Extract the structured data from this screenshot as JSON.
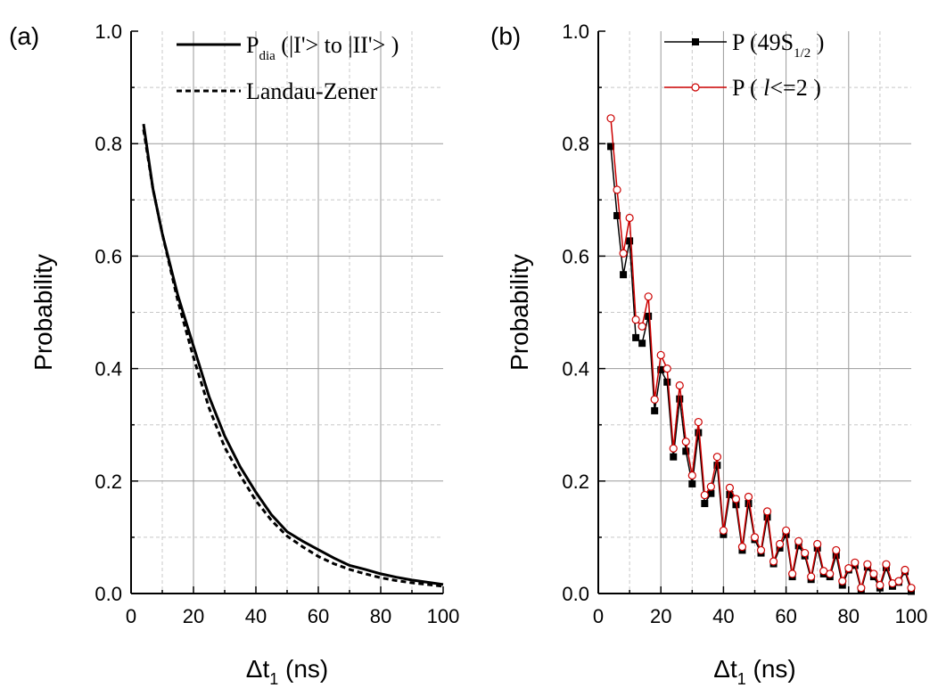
{
  "chart_data": [
    {
      "panel_label": "(a)",
      "type": "line",
      "xlabel": {
        "main": "Δt",
        "sub": "1",
        "unit": " (ns)"
      },
      "ylabel": "Probability",
      "xlim": [
        0,
        100
      ],
      "ylim": [
        0.0,
        1.0
      ],
      "x_ticks": [
        "0",
        "20",
        "40",
        "60",
        "80",
        "100"
      ],
      "y_ticks": [
        "0.0",
        "0.2",
        "0.4",
        "0.6",
        "0.8",
        "1.0"
      ],
      "grid": true,
      "legend_position": "top-right",
      "series": [
        {
          "key": "pdia",
          "legend": {
            "pre": "P",
            "sub": "dia",
            "post": " (|I'> to |II'> )"
          },
          "color": "#000000",
          "style": "solid",
          "x": [
            4,
            7,
            10,
            15,
            20,
            25,
            30,
            35,
            40,
            45,
            50,
            55,
            60,
            65,
            70,
            75,
            80,
            85,
            90,
            95,
            100
          ],
          "y": [
            0.835,
            0.72,
            0.64,
            0.53,
            0.44,
            0.35,
            0.28,
            0.225,
            0.18,
            0.14,
            0.11,
            0.093,
            0.078,
            0.063,
            0.05,
            0.043,
            0.035,
            0.029,
            0.024,
            0.02,
            0.016
          ]
        },
        {
          "key": "lz",
          "legend": {
            "pre": "Landau-Zener",
            "sub": "",
            "post": ""
          },
          "color": "#000000",
          "style": "dashed",
          "x": [
            4,
            7,
            10,
            15,
            20,
            25,
            30,
            35,
            40,
            45,
            50,
            55,
            60,
            65,
            70,
            75,
            80,
            85,
            90,
            95,
            100
          ],
          "y": [
            0.825,
            0.72,
            0.64,
            0.52,
            0.42,
            0.33,
            0.26,
            0.21,
            0.165,
            0.13,
            0.102,
            0.083,
            0.066,
            0.053,
            0.043,
            0.035,
            0.028,
            0.023,
            0.019,
            0.016,
            0.013
          ]
        }
      ]
    },
    {
      "panel_label": "(b)",
      "type": "line",
      "xlabel": {
        "main": "Δt",
        "sub": "1",
        "unit": " (ns)"
      },
      "ylabel": "Probability",
      "xlim": [
        0,
        100
      ],
      "ylim": [
        0.0,
        1.0
      ],
      "x_ticks": [
        "0",
        "20",
        "40",
        "60",
        "80",
        "100"
      ],
      "y_ticks": [
        "0.0",
        "0.2",
        "0.4",
        "0.6",
        "0.8",
        "1.0"
      ],
      "grid": true,
      "legend_position": "top-right",
      "series": [
        {
          "key": "p49s",
          "legend": {
            "pre": "P (49S",
            "sub": "1/2",
            "post": " )"
          },
          "color": "#000000",
          "marker": "filled-square",
          "x": [
            4,
            6,
            8,
            10,
            12,
            14,
            16,
            18,
            20,
            22,
            24,
            26,
            28,
            30,
            32,
            34,
            36,
            38,
            40,
            42,
            44,
            46,
            48,
            50,
            52,
            54,
            56,
            58,
            60,
            62,
            64,
            66,
            68,
            70,
            72,
            74,
            76,
            78,
            80,
            82,
            84,
            86,
            88,
            90,
            92,
            94,
            96,
            98,
            100
          ],
          "y": [
            0.795,
            0.672,
            0.567,
            0.627,
            0.455,
            0.445,
            0.493,
            0.325,
            0.398,
            0.376,
            0.243,
            0.346,
            0.253,
            0.195,
            0.286,
            0.16,
            0.178,
            0.228,
            0.105,
            0.176,
            0.158,
            0.077,
            0.16,
            0.096,
            0.072,
            0.136,
            0.053,
            0.081,
            0.105,
            0.03,
            0.085,
            0.067,
            0.025,
            0.081,
            0.035,
            0.03,
            0.068,
            0.015,
            0.042,
            0.05,
            0.006,
            0.047,
            0.03,
            0.01,
            0.046,
            0.013,
            0.02,
            0.039,
            0.004
          ]
        },
        {
          "key": "plle2",
          "legend": {
            "pre": "P ( ",
            "italic": "l",
            "post": "<=2 )"
          },
          "color": "#cc0000",
          "marker": "open-circle",
          "x": [
            4,
            6,
            8,
            10,
            12,
            14,
            16,
            18,
            20,
            22,
            24,
            26,
            28,
            30,
            32,
            34,
            36,
            38,
            40,
            42,
            44,
            46,
            48,
            50,
            52,
            54,
            56,
            58,
            60,
            62,
            64,
            66,
            68,
            70,
            72,
            74,
            76,
            78,
            80,
            82,
            84,
            86,
            88,
            90,
            92,
            94,
            96,
            98,
            100
          ],
          "y": [
            0.845,
            0.718,
            0.605,
            0.668,
            0.487,
            0.475,
            0.528,
            0.345,
            0.424,
            0.4,
            0.258,
            0.37,
            0.27,
            0.21,
            0.305,
            0.175,
            0.19,
            0.243,
            0.112,
            0.188,
            0.168,
            0.083,
            0.172,
            0.1,
            0.077,
            0.146,
            0.057,
            0.088,
            0.112,
            0.035,
            0.093,
            0.072,
            0.03,
            0.088,
            0.04,
            0.035,
            0.077,
            0.022,
            0.045,
            0.055,
            0.01,
            0.052,
            0.035,
            0.015,
            0.052,
            0.018,
            0.022,
            0.042,
            0.01
          ]
        }
      ]
    }
  ]
}
